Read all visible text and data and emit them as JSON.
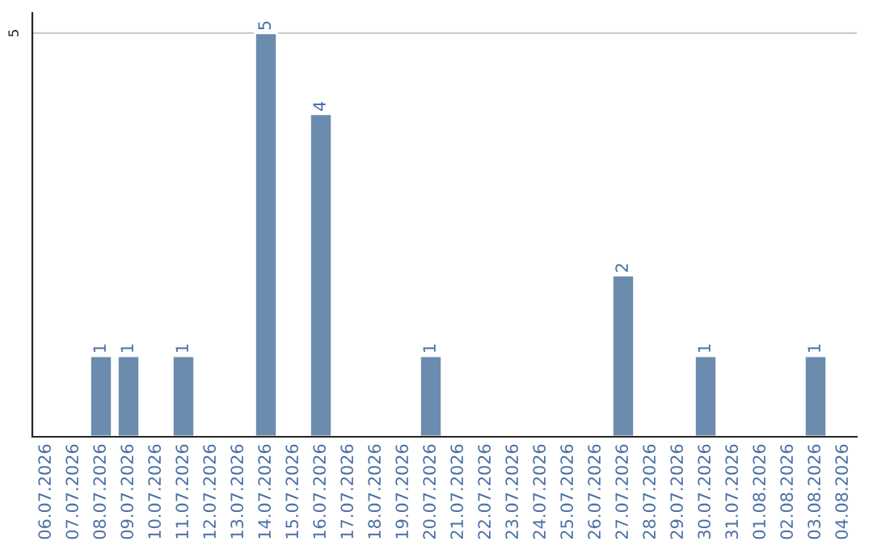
{
  "chart_data": {
    "type": "bar",
    "categories": [
      "06.07.2026",
      "07.07.2026",
      "08.07.2026",
      "09.07.2026",
      "10.07.2026",
      "11.07.2026",
      "12.07.2026",
      "13.07.2026",
      "14.07.2026",
      "15.07.2026",
      "16.07.2026",
      "17.07.2026",
      "18.07.2026",
      "19.07.2026",
      "20.07.2026",
      "21.07.2026",
      "22.07.2026",
      "23.07.2026",
      "24.07.2026",
      "25.07.2026",
      "26.07.2026",
      "27.07.2026",
      "28.07.2026",
      "29.07.2026",
      "30.07.2026",
      "31.07.2026",
      "01.08.2026",
      "02.08.2026",
      "03.08.2026",
      "04.08.2026"
    ],
    "values": [
      null,
      null,
      1,
      1,
      null,
      1,
      null,
      null,
      5,
      null,
      4,
      null,
      null,
      null,
      1,
      null,
      null,
      null,
      null,
      null,
      null,
      2,
      null,
      null,
      1,
      null,
      null,
      null,
      1,
      null
    ],
    "value_labels": [
      null,
      null,
      "1",
      "1",
      null,
      "1",
      null,
      null,
      "5",
      null,
      "4",
      null,
      null,
      null,
      "1",
      null,
      null,
      null,
      null,
      null,
      null,
      "2",
      null,
      null,
      "1",
      null,
      null,
      null,
      "1",
      null
    ],
    "color": "#6b8cae",
    "ylim": [
      0,
      5.25
    ],
    "yticks": [
      5
    ],
    "grid": "y",
    "legend": false
  }
}
